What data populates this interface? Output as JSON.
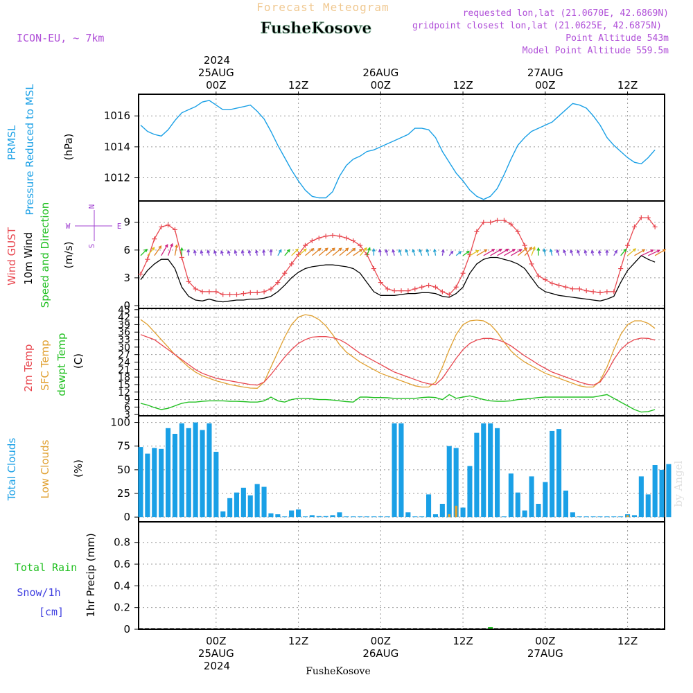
{
  "header": {
    "forecast_title": "Forecast Meteogram",
    "location": "FusheKosove",
    "model": "ICON-EU, ~ 7km",
    "requested": "requested lon,lat (21.0670E, 42.6869N)",
    "closest": "gridpoint closest lon,lat (21.0625E, 42.6875N)",
    "point_alt": "Point Altitude 543m",
    "model_alt": "Model Point Altitude 559.5m",
    "footer_location": "FusheKosove",
    "credit": "by Angel"
  },
  "colors": {
    "pressure": "#1aa0e6",
    "gust": "#e8474f",
    "wind": "#000000",
    "temp2m": "#e8474f",
    "sfc": "#e0a030",
    "dew": "#22c022",
    "cloud_total": "#1aa0e6",
    "cloud_low": "#e0a030",
    "rain": "#22c022",
    "snow": "#4040e0",
    "purple": "#a040d0",
    "arrow_calm": "#8040d0",
    "arrow_light": "#20a0d0",
    "arrow_green": "#22c022",
    "arrow_yellow": "#e0c020",
    "arrow_orange": "#e08020",
    "arrow_magenta": "#d02080"
  },
  "time_axis": {
    "top_year": "2024",
    "bottom_year": "2024",
    "ticks": [
      {
        "hour": 0,
        "label": "00Z",
        "date": "25AUG"
      },
      {
        "hour": 12,
        "label": "12Z",
        "date": ""
      },
      {
        "hour": 24,
        "label": "00Z",
        "date": "26AUG"
      },
      {
        "hour": 36,
        "label": "12Z",
        "date": ""
      },
      {
        "hour": 48,
        "label": "00Z",
        "date": "27AUG"
      },
      {
        "hour": 60,
        "label": "12Z",
        "date": ""
      }
    ],
    "range": [
      -11.3,
      65.4
    ]
  },
  "panels": {
    "pressure": {
      "label1": "PRMSL",
      "label2": "Pressure Reduced to MSL",
      "unit": "(hPa)",
      "ylim": [
        1010.5,
        1017.4
      ],
      "ticks": [
        1012,
        1014,
        1016
      ]
    },
    "wind": {
      "label_gust": "Wind GUST",
      "label_wind": "10m Wind",
      "label_dir": "Speed and Direction",
      "unit": "(m/s)",
      "ylim": [
        -0.3,
        11.3
      ],
      "ticks": [
        0,
        3,
        6,
        9
      ],
      "compass_n": "N",
      "compass_s": "S",
      "compass_w": "W",
      "compass_e": "E"
    },
    "temp": {
      "label_2m": "2m Temp",
      "label_sfc": "SFC Temp",
      "label_dew": "dewpt Temp",
      "unit": "(C)",
      "ylim": [
        2.5,
        45.5
      ],
      "ticks": [
        3,
        6,
        9,
        12,
        15,
        18,
        21,
        24,
        27,
        30,
        33,
        36,
        39,
        42,
        45
      ]
    },
    "clouds": {
      "label_total": "Total Clouds",
      "label_low": "Low Clouds",
      "unit": "(%)",
      "ylim": [
        -5,
        107
      ],
      "ticks": [
        0,
        25,
        50,
        75,
        100
      ]
    },
    "precip": {
      "label_rain": "Total Rain",
      "label_snow": "Snow/1h",
      "label_cm": "[cm]",
      "unit": "1hr Precip (mm)",
      "ylim": [
        0,
        0.99
      ],
      "ticks": [
        0,
        0.2,
        0.4,
        0.6,
        0.8
      ]
    }
  },
  "chart_data": [
    {
      "type": "line",
      "name": "PRMSL",
      "x_start_hour": -11,
      "x_step_hours": 1,
      "ylabel": "(hPa)",
      "values": [
        1015.4,
        1015.0,
        1014.8,
        1014.7,
        1015.1,
        1015.7,
        1016.2,
        1016.4,
        1016.6,
        1016.9,
        1017.0,
        1016.7,
        1016.4,
        1016.4,
        1016.5,
        1016.6,
        1016.7,
        1016.3,
        1015.8,
        1015.0,
        1014.1,
        1013.3,
        1012.5,
        1011.8,
        1011.2,
        1010.8,
        1010.7,
        1010.7,
        1011.1,
        1012.1,
        1012.8,
        1013.2,
        1013.4,
        1013.7,
        1013.8,
        1014.0,
        1014.2,
        1014.4,
        1014.6,
        1014.8,
        1015.2,
        1015.2,
        1015.1,
        1014.6,
        1013.7,
        1013.0,
        1012.3,
        1011.8,
        1011.2,
        1010.8,
        1010.6,
        1010.8,
        1011.3,
        1012.2,
        1013.2,
        1014.1,
        1014.6,
        1015.0,
        1015.2,
        1015.4,
        1015.6,
        1016.0,
        1016.4,
        1016.8,
        1016.7,
        1016.5,
        1016.0,
        1015.4,
        1014.6,
        1014.1,
        1013.7,
        1013.3,
        1013.0,
        1012.9,
        1013.3,
        1013.8
      ]
    },
    {
      "type": "line",
      "name": "Wind GUST",
      "x_start_hour": -11,
      "x_step_hours": 1,
      "ylabel": "(m/s)",
      "values": [
        3.4,
        5.0,
        7.2,
        8.5,
        8.7,
        8.2,
        5.2,
        2.6,
        1.8,
        1.5,
        1.5,
        1.5,
        1.2,
        1.2,
        1.2,
        1.3,
        1.4,
        1.4,
        1.5,
        1.8,
        2.5,
        3.5,
        4.5,
        5.5,
        6.5,
        7.0,
        7.3,
        7.5,
        7.6,
        7.5,
        7.3,
        7.0,
        6.5,
        5.5,
        4.0,
        2.5,
        1.8,
        1.6,
        1.6,
        1.6,
        1.8,
        2.0,
        2.2,
        2.0,
        1.5,
        1.2,
        2.0,
        3.5,
        5.5,
        8.0,
        9.0,
        9.0,
        9.2,
        9.2,
        8.8,
        8.0,
        6.5,
        4.5,
        3.2,
        2.8,
        2.4,
        2.2,
        2.0,
        1.8,
        1.8,
        1.6,
        1.5,
        1.4,
        1.5,
        1.5,
        4.0,
        6.5,
        8.5,
        9.5,
        9.5,
        8.5
      ]
    },
    {
      "type": "line",
      "name": "10m Wind",
      "x_start_hour": -11,
      "x_step_hours": 1,
      "ylabel": "(m/s)",
      "values": [
        2.8,
        3.8,
        4.5,
        5.0,
        5.0,
        4.0,
        2.0,
        1.0,
        0.6,
        0.5,
        0.7,
        0.5,
        0.4,
        0.5,
        0.6,
        0.6,
        0.7,
        0.7,
        0.8,
        1.0,
        1.5,
        2.2,
        3.0,
        3.6,
        4.0,
        4.2,
        4.3,
        4.4,
        4.4,
        4.3,
        4.2,
        4.0,
        3.5,
        2.5,
        1.5,
        1.1,
        1.1,
        1.1,
        1.2,
        1.3,
        1.3,
        1.4,
        1.4,
        1.3,
        1.0,
        0.9,
        1.3,
        2.0,
        3.5,
        4.5,
        5.0,
        5.2,
        5.2,
        5.0,
        4.8,
        4.5,
        4.0,
        3.0,
        2.0,
        1.5,
        1.3,
        1.1,
        1.0,
        0.9,
        0.8,
        0.7,
        0.6,
        0.5,
        0.7,
        1.0,
        2.5,
        3.8,
        4.6,
        5.4,
        5.0,
        4.7
      ]
    },
    {
      "type": "line",
      "name": "2m Temp",
      "x_start_hour": -11,
      "x_step_hours": 1,
      "ylabel": "(C)",
      "values": [
        35.0,
        34.0,
        33.0,
        31.0,
        29.0,
        27.0,
        25.0,
        23.0,
        21.0,
        19.5,
        18.5,
        17.5,
        17.0,
        16.5,
        16.0,
        15.5,
        15.0,
        14.8,
        16.0,
        19.0,
        22.5,
        26.0,
        29.0,
        31.5,
        33.0,
        34.0,
        34.2,
        34.2,
        33.8,
        33.0,
        31.5,
        29.5,
        27.5,
        26.0,
        24.5,
        23.0,
        21.5,
        20.0,
        19.0,
        18.0,
        17.0,
        16.0,
        15.3,
        15.0,
        17.5,
        21.5,
        25.5,
        29.0,
        31.5,
        32.8,
        33.5,
        33.5,
        33.0,
        32.0,
        30.5,
        28.5,
        26.5,
        24.8,
        23.0,
        21.5,
        20.0,
        19.0,
        18.0,
        17.0,
        16.0,
        15.2,
        14.8,
        16.0,
        20.0,
        25.0,
        29.0,
        31.5,
        33.0,
        33.6,
        33.5,
        32.8
      ]
    },
    {
      "type": "line",
      "name": "SFC Temp",
      "x_start_hour": -11,
      "x_step_hours": 1,
      "ylabel": "(C)",
      "values": [
        41.0,
        39.0,
        36.0,
        33.0,
        30.0,
        27.0,
        24.5,
        22.0,
        20.0,
        18.5,
        17.5,
        16.5,
        15.8,
        15.0,
        14.5,
        14.0,
        13.6,
        13.5,
        16.0,
        22.0,
        28.0,
        34.0,
        39.0,
        42.0,
        43.0,
        42.5,
        41.0,
        38.5,
        35.0,
        31.0,
        28.0,
        26.0,
        24.0,
        22.5,
        21.0,
        19.5,
        18.5,
        17.5,
        16.5,
        15.5,
        14.5,
        14.0,
        14.0,
        16.0,
        22.0,
        29.0,
        35.0,
        39.0,
        40.5,
        40.8,
        40.5,
        39.0,
        36.0,
        32.0,
        28.5,
        26.0,
        24.0,
        22.5,
        21.0,
        19.5,
        18.5,
        17.5,
        16.5,
        15.5,
        14.5,
        14.0,
        14.0,
        16.5,
        22.0,
        29.0,
        35.0,
        39.0,
        40.5,
        40.5,
        39.5,
        37.5
      ]
    },
    {
      "type": "line",
      "name": "dewpt Temp",
      "x_start_hour": -11,
      "x_step_hours": 1,
      "ylabel": "(C)",
      "values": [
        7.5,
        6.8,
        5.8,
        5.0,
        5.5,
        6.5,
        7.5,
        8.0,
        8.0,
        8.3,
        8.5,
        8.5,
        8.5,
        8.3,
        8.3,
        8.2,
        8.0,
        8.0,
        8.5,
        10.0,
        8.5,
        8.0,
        9.0,
        9.5,
        9.5,
        9.3,
        9.0,
        9.0,
        8.8,
        8.5,
        8.2,
        8.0,
        10.0,
        10.0,
        9.8,
        9.8,
        9.7,
        9.5,
        9.5,
        9.5,
        9.5,
        9.8,
        10.0,
        9.8,
        9.0,
        11.0,
        9.5,
        10.0,
        10.5,
        9.8,
        9.0,
        8.5,
        8.3,
        8.3,
        8.5,
        9.0,
        9.2,
        9.5,
        9.8,
        10.0,
        10.0,
        10.0,
        10.0,
        10.0,
        10.0,
        10.0,
        10.0,
        10.5,
        11.0,
        9.5,
        8.0,
        6.5,
        5.0,
        4.0,
        4.2,
        5.0
      ]
    },
    {
      "type": "bar",
      "name": "Total Clouds",
      "x_start_hour": -11,
      "x_step_hours": 1,
      "ylabel": "(%)",
      "values": [
        74,
        67,
        73,
        72,
        94,
        88,
        99,
        94,
        100,
        92,
        99,
        69,
        6,
        20,
        26,
        31,
        23,
        35,
        32,
        4,
        3,
        0,
        7,
        8,
        0,
        2,
        1,
        1,
        2,
        5,
        0,
        0,
        0,
        0,
        0,
        0,
        0,
        99,
        99,
        5,
        0,
        0,
        24,
        3,
        14,
        75,
        73,
        10,
        54,
        89,
        99,
        99,
        94,
        0,
        46,
        26,
        7,
        43,
        14,
        37,
        91,
        93,
        28,
        5,
        0,
        0,
        0,
        0,
        0,
        0,
        0,
        3,
        2,
        43,
        24,
        55,
        50,
        56
      ]
    },
    {
      "type": "bar",
      "name": "Low Clouds",
      "x_start_hour": -11,
      "x_step_hours": 1,
      "ylabel": "(%)",
      "values": [
        0,
        0,
        0,
        0,
        0,
        0,
        0,
        0,
        0,
        0,
        0,
        0,
        0,
        0,
        0,
        0,
        0,
        0,
        0,
        0,
        0,
        0,
        0,
        0,
        0,
        0,
        0,
        0,
        0,
        0,
        0,
        0,
        0,
        0,
        0,
        0,
        0,
        0,
        0,
        0,
        0,
        0,
        0,
        0,
        0,
        3,
        12,
        0,
        0,
        0,
        0,
        0,
        0,
        0,
        0,
        0,
        0,
        0,
        0,
        0,
        0,
        0,
        0,
        0,
        0,
        0,
        0,
        0,
        0,
        0,
        0,
        2,
        0,
        0,
        0,
        0,
        0,
        0
      ]
    },
    {
      "type": "bar",
      "name": "1hr Precip",
      "x_start_hour": -11,
      "x_step_hours": 1,
      "ylabel": "1hr Precip (mm)",
      "values": [
        0,
        0,
        0,
        0,
        0,
        0,
        0,
        0,
        0,
        0,
        0,
        0,
        0,
        0,
        0,
        0,
        0,
        0,
        0,
        0,
        0,
        0,
        0,
        0,
        0,
        0,
        0,
        0,
        0,
        0,
        0,
        0,
        0,
        0,
        0,
        0,
        0,
        0,
        0,
        0,
        0,
        0,
        0,
        0,
        0,
        0,
        0,
        0,
        0,
        0,
        0,
        0.01,
        0,
        0,
        0,
        0,
        0,
        0,
        0,
        0,
        0,
        0,
        0,
        0,
        0,
        0,
        0,
        0,
        0,
        0,
        0,
        0,
        0,
        0,
        0,
        0
      ]
    },
    {
      "type": "scatter",
      "name": "10m Wind Direction (deg, from)",
      "x_start_hour": -11,
      "x_step_hours": 1,
      "values": [
        225,
        220,
        215,
        210,
        200,
        190,
        180,
        175,
        170,
        165,
        165,
        160,
        160,
        160,
        160,
        165,
        165,
        170,
        175,
        180,
        210,
        220,
        225,
        230,
        230,
        230,
        230,
        230,
        230,
        230,
        230,
        235,
        220,
        200,
        180,
        170,
        165,
        165,
        160,
        160,
        160,
        160,
        165,
        170,
        190,
        220,
        230,
        235,
        240,
        240,
        240,
        240,
        240,
        240,
        240,
        230,
        220,
        200,
        180,
        170,
        165,
        160,
        160,
        160,
        160,
        165,
        165,
        170,
        180,
        210,
        220,
        230,
        240,
        245,
        245,
        240
      ]
    }
  ]
}
